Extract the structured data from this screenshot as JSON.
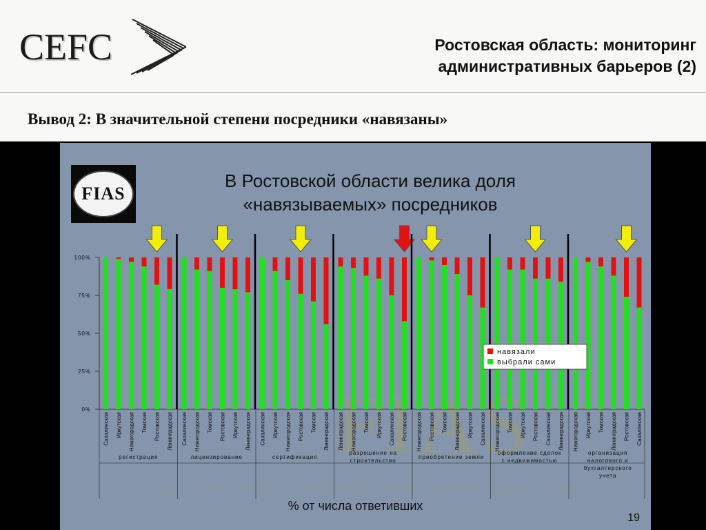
{
  "header": {
    "logo": "CEFC",
    "title_line1": "Ростовская область: мониторинг",
    "title_line2": "административных барьеров (2)"
  },
  "subtitle": "Вывод 2: В значительной степени посредники «навязаны»",
  "panel": {
    "logo": "FIAS",
    "title_line1": "В Ростовской области велика доля",
    "title_line2": "«навязываемых» посредников",
    "watermark": "FIAS",
    "watermark_sub": "FOREIGN INVESTMENT ADVISORY SERVICE",
    "caption": "% от числа ответивших",
    "page_number": "19"
  },
  "colors": {
    "green": "#22e01e",
    "red": "#e31212",
    "arrow_yellow": "#f2ee0a",
    "arrow_red": "#e31212",
    "panel_bg": "#8495ac"
  },
  "chart_data": {
    "type": "bar",
    "stacked": true,
    "y_ticks": [
      "100%",
      "75%",
      "50%",
      "25%",
      "0%"
    ],
    "ylim": [
      0,
      100
    ],
    "legend": [
      "навязали",
      "выбрали сами"
    ],
    "legend_position": "right",
    "series_names": [
      "выбрали сами",
      "навязали"
    ],
    "groups": [
      {
        "label": "регистрация",
        "highlight": "Ростовская",
        "arrow": "yellow",
        "bars": [
          {
            "region": "Сахалинская",
            "chosen": 100
          },
          {
            "region": "Иркутская",
            "chosen": 99
          },
          {
            "region": "Нижегородская",
            "chosen": 97
          },
          {
            "region": "Томская",
            "chosen": 94
          },
          {
            "region": "Ростовская",
            "chosen": 82
          },
          {
            "region": "Ленинградская",
            "chosen": 79
          }
        ]
      },
      {
        "label": "лицензирование",
        "highlight": "Ростовская",
        "arrow": "yellow",
        "bars": [
          {
            "region": "Сахалинская",
            "chosen": 100
          },
          {
            "region": "Нижегородская",
            "chosen": 92
          },
          {
            "region": "Томская",
            "chosen": 91
          },
          {
            "region": "Ростовская",
            "chosen": 80
          },
          {
            "region": "Иркутская",
            "chosen": 79
          },
          {
            "region": "Ленинградская",
            "chosen": 77
          }
        ]
      },
      {
        "label": "сертификация",
        "highlight": "Ростовская",
        "arrow": "yellow",
        "bars": [
          {
            "region": "Сахалинская",
            "chosen": 100
          },
          {
            "region": "Иркутская",
            "chosen": 91
          },
          {
            "region": "Нижегородская",
            "chosen": 85
          },
          {
            "region": "Ростовская",
            "chosen": 76
          },
          {
            "region": "Томская",
            "chosen": 71
          },
          {
            "region": "Ленинградская",
            "chosen": 56
          }
        ]
      },
      {
        "label": "разрешение на строительство",
        "highlight": "Ростовская",
        "arrow": "red",
        "bars": [
          {
            "region": "Ленинградская",
            "chosen": 94
          },
          {
            "region": "Нижегородская",
            "chosen": 93
          },
          {
            "region": "Томская",
            "chosen": 88
          },
          {
            "region": "Иркутская",
            "chosen": 86
          },
          {
            "region": "Сахалинская",
            "chosen": 75
          },
          {
            "region": "Ростовская",
            "chosen": 58
          }
        ]
      },
      {
        "label": "приобретение земли",
        "highlight": "Ростовская",
        "arrow": "yellow",
        "bars": [
          {
            "region": "Нижегородская",
            "chosen": 100
          },
          {
            "region": "Ростовская",
            "chosen": 98
          },
          {
            "region": "Томская",
            "chosen": 95
          },
          {
            "region": "Ленинградская",
            "chosen": 89
          },
          {
            "region": "Иркутская",
            "chosen": 75
          },
          {
            "region": "Сахалинская",
            "chosen": 67
          }
        ]
      },
      {
        "label": "оформление сделок с недвижимостью",
        "highlight": "Ростовская",
        "arrow": "yellow",
        "bars": [
          {
            "region": "Нижегородская",
            "chosen": 100
          },
          {
            "region": "Томская",
            "chosen": 92
          },
          {
            "region": "Иркутская",
            "chosen": 92
          },
          {
            "region": "Ростовская",
            "chosen": 86
          },
          {
            "region": "Сахалинская",
            "chosen": 86
          },
          {
            "region": "Ленинградская",
            "chosen": 84
          }
        ]
      },
      {
        "label": "организация налогового и бухгалтерского учета",
        "highlight": "Ростовская",
        "arrow": "yellow",
        "bars": [
          {
            "region": "Нижегородская",
            "chosen": 100
          },
          {
            "region": "Иркутская",
            "chosen": 97
          },
          {
            "region": "Томская",
            "chosen": 94
          },
          {
            "region": "Ленинградская",
            "chosen": 88
          },
          {
            "region": "Ростовская",
            "chosen": 74
          },
          {
            "region": "Сахалинская",
            "chosen": 67
          }
        ]
      }
    ]
  }
}
